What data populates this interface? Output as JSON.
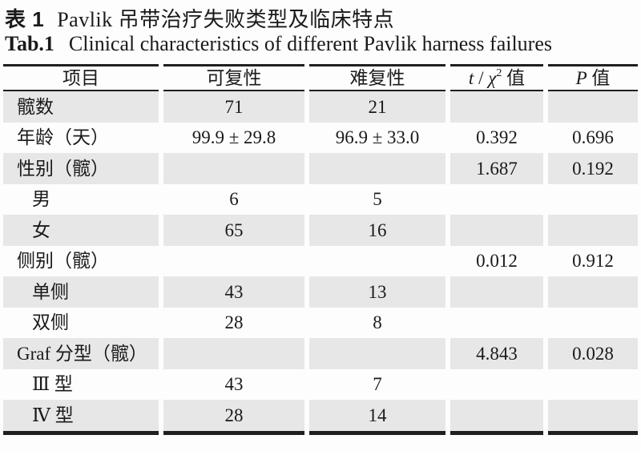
{
  "page": {
    "title_cn": {
      "label": "表 1",
      "text": "Pavlik 吊带治疗失败类型及临床特点"
    },
    "title_en": {
      "label": "Tab.1",
      "text": "Clinical characteristics of different Pavlik harness failures"
    }
  },
  "table": {
    "columns": {
      "item": "项目",
      "reducible": "可复性",
      "irreducible": "难复性",
      "stat_t": "t",
      "stat_slash": " / ",
      "stat_chi": "χ",
      "stat_sup": "2",
      "stat_suffix": " 值",
      "p_symbol": "P",
      "p_suffix": " 值"
    },
    "rows": [
      {
        "item": "髋数",
        "reducible": "71",
        "irreducible": "21",
        "t": "",
        "p": ""
      },
      {
        "item": "年龄（天）",
        "reducible": "99.9 ± 29.8",
        "irreducible": "96.9 ± 33.0",
        "t": "0.392",
        "p": "0.696"
      },
      {
        "item": "性别（髋）",
        "reducible": "",
        "irreducible": "",
        "t": "1.687",
        "p": "0.192"
      },
      {
        "item": "男",
        "reducible": "6",
        "irreducible": "5",
        "t": "",
        "p": ""
      },
      {
        "item": "女",
        "reducible": "65",
        "irreducible": "16",
        "t": "",
        "p": ""
      },
      {
        "item": "侧别（髋）",
        "reducible": "",
        "irreducible": "",
        "t": "0.012",
        "p": "0.912"
      },
      {
        "item": "单侧",
        "reducible": "43",
        "irreducible": "13",
        "t": "",
        "p": ""
      },
      {
        "item": "双侧",
        "reducible": "28",
        "irreducible": "8",
        "t": "",
        "p": ""
      },
      {
        "item": "Graf 分型（髋）",
        "reducible": "",
        "irreducible": "",
        "t": "4.843",
        "p": "0.028"
      },
      {
        "item": "Ⅲ 型",
        "reducible": "43",
        "irreducible": "7",
        "t": "",
        "p": ""
      },
      {
        "item": "Ⅳ 型",
        "reducible": "28",
        "irreducible": "14",
        "t": "",
        "p": ""
      }
    ]
  },
  "colors": {
    "row_shade": "#e7e7e7",
    "rule": "#1f1f1f",
    "text": "#1a1a1a",
    "background": "#fdfdfd"
  }
}
